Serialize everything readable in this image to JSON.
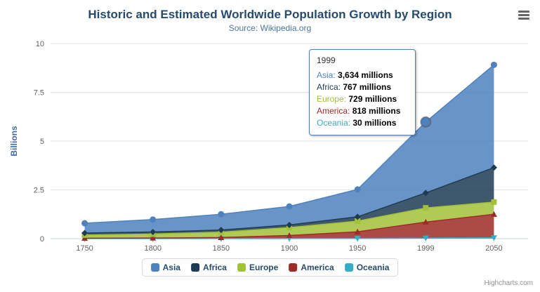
{
  "chart": {
    "credit": "Highcharts.com",
    "icons": {
      "context_menu": "hamburger-icon"
    }
  },
  "chart_data": {
    "type": "area",
    "stacking": "normal",
    "title": "Historic and Estimated Worldwide Population Growth by Region",
    "subtitle": "Source: Wikipedia.org",
    "xlabel": "",
    "ylabel": "Billions",
    "ylim": [
      0,
      10
    ],
    "y_ticks": [
      0,
      2.5,
      5,
      7.5,
      10
    ],
    "categories": [
      "1750",
      "1800",
      "1850",
      "1900",
      "1950",
      "1999",
      "2050"
    ],
    "unit": "millions",
    "grid": true,
    "legend_position": "bottom",
    "series": [
      {
        "name": "Asia",
        "color": "#4F81BD",
        "marker": "circle",
        "values": [
          502,
          635,
          809,
          947,
          1402,
          3634,
          5268
        ]
      },
      {
        "name": "Africa",
        "color": "#1F3B53",
        "marker": "diamond",
        "values": [
          106,
          107,
          111,
          133,
          221,
          767,
          1766
        ]
      },
      {
        "name": "Europe",
        "color": "#A2C139",
        "marker": "square",
        "values": [
          163,
          203,
          276,
          408,
          547,
          729,
          628
        ]
      },
      {
        "name": "America",
        "color": "#9E2B25",
        "marker": "triangle",
        "values": [
          18,
          31,
          54,
          156,
          339,
          818,
          1201
        ]
      },
      {
        "name": "Oceania",
        "color": "#35AEC5",
        "marker": "triangle-down",
        "values": [
          2,
          2,
          2,
          6,
          13,
          30,
          46
        ]
      }
    ]
  },
  "tooltip": {
    "header": "1999",
    "highlight": {
      "series": "Asia",
      "category": "1999"
    },
    "rows": [
      {
        "series": "Asia",
        "value": "3,634 millions"
      },
      {
        "series": "Africa",
        "value": "767 millions"
      },
      {
        "series": "Europe",
        "value": "729 millions"
      },
      {
        "series": "America",
        "value": "818 millions"
      },
      {
        "series": "Oceania",
        "value": "30 millions"
      }
    ]
  }
}
